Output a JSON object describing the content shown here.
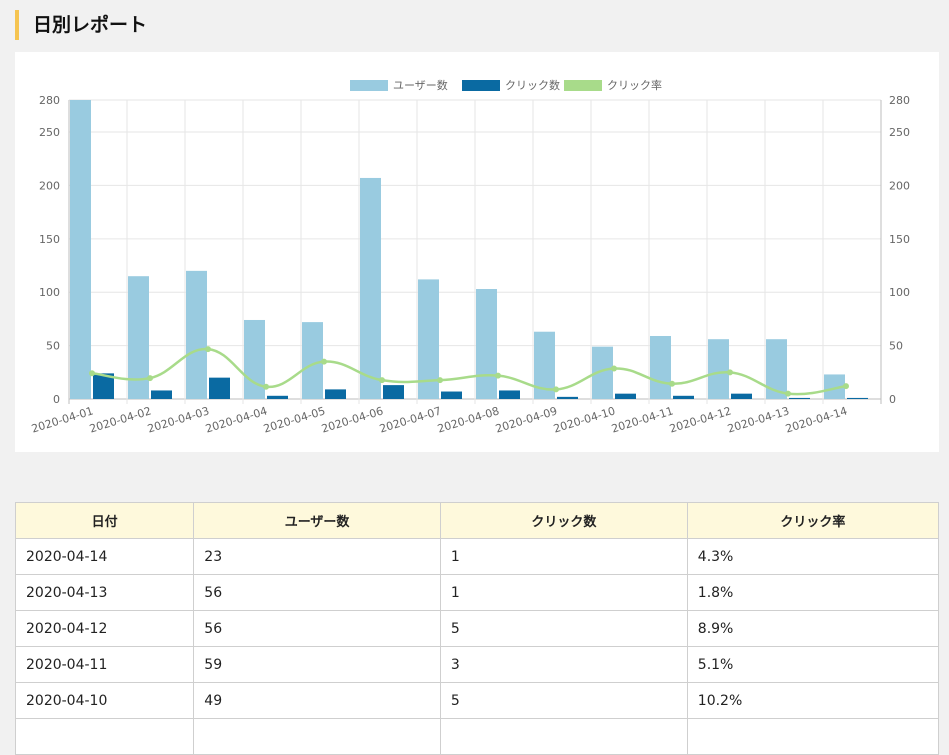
{
  "page": {
    "title": "日別レポート"
  },
  "chart_data": {
    "type": "bar",
    "categories": [
      "2020-04-01",
      "2020-04-02",
      "2020-04-03",
      "2020-04-04",
      "2020-04-05",
      "2020-04-06",
      "2020-04-07",
      "2020-04-08",
      "2020-04-09",
      "2020-04-10",
      "2020-04-11",
      "2020-04-12",
      "2020-04-13",
      "2020-04-14"
    ],
    "series": [
      {
        "name": "ユーザー数",
        "type": "bar",
        "color": "#99cbe0",
        "values": [
          280,
          115,
          120,
          74,
          72,
          207,
          112,
          103,
          63,
          49,
          59,
          56,
          56,
          23
        ]
      },
      {
        "name": "クリック数",
        "type": "bar",
        "color": "#0a6aa2",
        "values": [
          24,
          8,
          20,
          3,
          9,
          13,
          7,
          8,
          2,
          5,
          3,
          5,
          1,
          1
        ]
      },
      {
        "name": "クリック率",
        "type": "line",
        "color": "#a8db8a",
        "values": [
          8.6,
          7.0,
          16.7,
          4.1,
          12.5,
          6.3,
          6.3,
          7.8,
          3.2,
          10.2,
          5.1,
          8.9,
          1.8,
          4.3
        ]
      }
    ],
    "y_ticks": [
      0,
      50,
      100,
      150,
      200,
      250,
      280
    ],
    "y2_ticks": [
      0,
      50,
      100,
      150,
      200,
      250,
      280
    ],
    "ylim": [
      0,
      280
    ],
    "y2lim": [
      0,
      100
    ],
    "grid": true,
    "legend": "top-center"
  },
  "table": {
    "headers": [
      "日付",
      "ユーザー数",
      "クリック数",
      "クリック率"
    ],
    "rows": [
      [
        "2020-04-14",
        "23",
        "1",
        "4.3%"
      ],
      [
        "2020-04-13",
        "56",
        "1",
        "1.8%"
      ],
      [
        "2020-04-12",
        "56",
        "5",
        "8.9%"
      ],
      [
        "2020-04-11",
        "59",
        "3",
        "5.1%"
      ],
      [
        "2020-04-10",
        "49",
        "5",
        "10.2%"
      ],
      [
        "",
        "",
        "",
        ""
      ]
    ]
  }
}
